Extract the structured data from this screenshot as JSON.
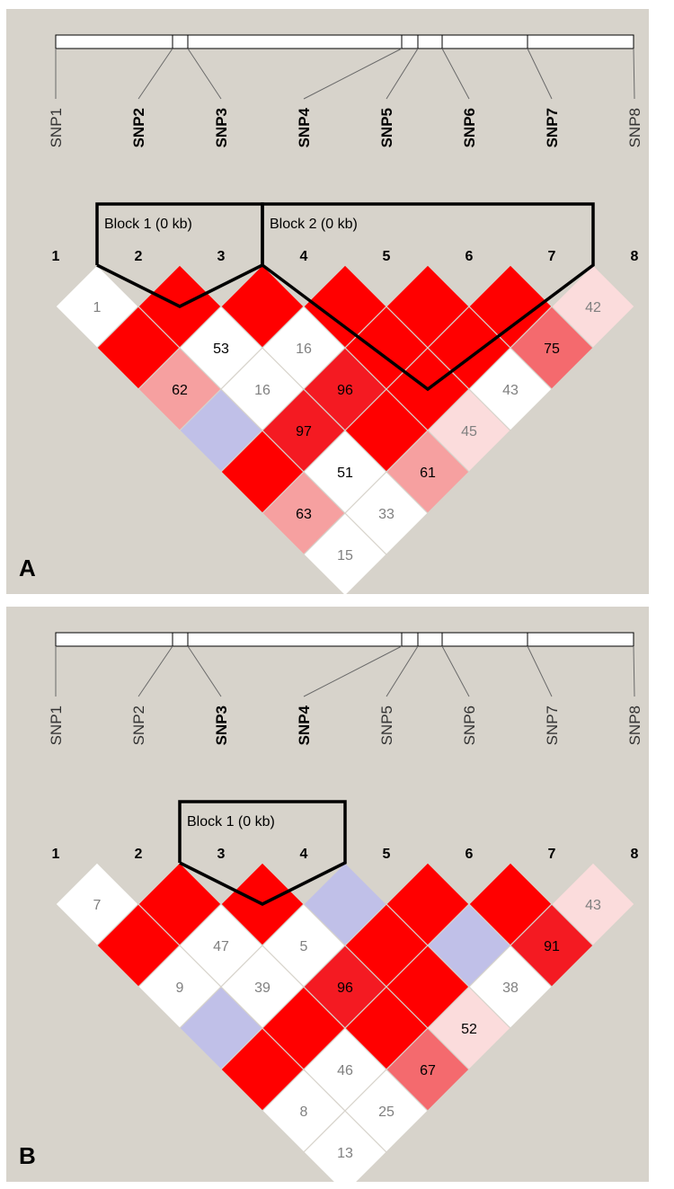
{
  "panels": [
    {
      "letter": "A",
      "snps": [
        "SNP1",
        "SNP2",
        "SNP3",
        "SNP4",
        "SNP5",
        "SNP6",
        "SNP7",
        "SNP8"
      ],
      "bold_snps": [
        false,
        true,
        true,
        true,
        true,
        true,
        true,
        false
      ],
      "snp_numbers": [
        "1",
        "2",
        "3",
        "4",
        "5",
        "6",
        "7",
        "8"
      ],
      "blocks": [
        {
          "label": "Block 1 (0 kb)",
          "start": 2,
          "end": 3
        },
        {
          "label": "Block 2 (0 kb)",
          "start": 4,
          "end": 7
        }
      ],
      "cells": [
        {
          "i": 1,
          "j": 2,
          "value": "1",
          "level": "white",
          "textcolor": "gray"
        },
        {
          "i": 1,
          "j": 3,
          "value": "",
          "level": "red",
          "textcolor": "black"
        },
        {
          "i": 1,
          "j": 4,
          "value": "62",
          "level": "pink",
          "textcolor": "black"
        },
        {
          "i": 1,
          "j": 5,
          "value": "",
          "level": "blue",
          "textcolor": "black"
        },
        {
          "i": 1,
          "j": 6,
          "value": "",
          "level": "red",
          "textcolor": "black"
        },
        {
          "i": 1,
          "j": 7,
          "value": "63",
          "level": "pink",
          "textcolor": "black"
        },
        {
          "i": 1,
          "j": 8,
          "value": "15",
          "level": "white",
          "textcolor": "gray"
        },
        {
          "i": 2,
          "j": 3,
          "value": "",
          "level": "red",
          "textcolor": "black"
        },
        {
          "i": 2,
          "j": 4,
          "value": "53",
          "level": "white",
          "textcolor": "black"
        },
        {
          "i": 2,
          "j": 5,
          "value": "16",
          "level": "white",
          "textcolor": "gray"
        },
        {
          "i": 2,
          "j": 6,
          "value": "97",
          "level": "red2",
          "textcolor": "black"
        },
        {
          "i": 2,
          "j": 7,
          "value": "51",
          "level": "white",
          "textcolor": "black"
        },
        {
          "i": 2,
          "j": 8,
          "value": "33",
          "level": "white",
          "textcolor": "gray"
        },
        {
          "i": 3,
          "j": 4,
          "value": "",
          "level": "red",
          "textcolor": "black"
        },
        {
          "i": 3,
          "j": 5,
          "value": "16",
          "level": "white",
          "textcolor": "gray"
        },
        {
          "i": 3,
          "j": 6,
          "value": "96",
          "level": "red2",
          "textcolor": "black"
        },
        {
          "i": 3,
          "j": 7,
          "value": "",
          "level": "red",
          "textcolor": "black"
        },
        {
          "i": 3,
          "j": 8,
          "value": "61",
          "level": "pink",
          "textcolor": "black"
        },
        {
          "i": 4,
          "j": 5,
          "value": "",
          "level": "red",
          "textcolor": "black"
        },
        {
          "i": 4,
          "j": 6,
          "value": "",
          "level": "red",
          "textcolor": "black"
        },
        {
          "i": 4,
          "j": 7,
          "value": "",
          "level": "red",
          "textcolor": "black"
        },
        {
          "i": 4,
          "j": 8,
          "value": "45",
          "level": "lightpink",
          "textcolor": "gray"
        },
        {
          "i": 5,
          "j": 6,
          "value": "",
          "level": "red",
          "textcolor": "black"
        },
        {
          "i": 5,
          "j": 7,
          "value": "",
          "level": "red",
          "textcolor": "black"
        },
        {
          "i": 5,
          "j": 8,
          "value": "43",
          "level": "white",
          "textcolor": "gray"
        },
        {
          "i": 6,
          "j": 7,
          "value": "",
          "level": "red",
          "textcolor": "black"
        },
        {
          "i": 6,
          "j": 8,
          "value": "75",
          "level": "salmon",
          "textcolor": "black"
        },
        {
          "i": 7,
          "j": 8,
          "value": "42",
          "level": "lightpink",
          "textcolor": "gray"
        }
      ]
    },
    {
      "letter": "B",
      "snps": [
        "SNP1",
        "SNP2",
        "SNP3",
        "SNP4",
        "SNP5",
        "SNP6",
        "SNP7",
        "SNP8"
      ],
      "bold_snps": [
        false,
        false,
        true,
        true,
        false,
        false,
        false,
        false
      ],
      "snp_numbers": [
        "1",
        "2",
        "3",
        "4",
        "5",
        "6",
        "7",
        "8"
      ],
      "blocks": [
        {
          "label": "Block 1 (0 kb)",
          "start": 3,
          "end": 4
        }
      ],
      "cells": [
        {
          "i": 1,
          "j": 2,
          "value": "7",
          "level": "white",
          "textcolor": "gray"
        },
        {
          "i": 1,
          "j": 3,
          "value": "",
          "level": "red",
          "textcolor": "black"
        },
        {
          "i": 1,
          "j": 4,
          "value": "9",
          "level": "white",
          "textcolor": "gray"
        },
        {
          "i": 1,
          "j": 5,
          "value": "",
          "level": "blue",
          "textcolor": "black"
        },
        {
          "i": 1,
          "j": 6,
          "value": "",
          "level": "red",
          "textcolor": "black"
        },
        {
          "i": 1,
          "j": 7,
          "value": "8",
          "level": "white",
          "textcolor": "gray"
        },
        {
          "i": 1,
          "j": 8,
          "value": "13",
          "level": "white",
          "textcolor": "gray"
        },
        {
          "i": 2,
          "j": 3,
          "value": "",
          "level": "red",
          "textcolor": "black"
        },
        {
          "i": 2,
          "j": 4,
          "value": "47",
          "level": "white",
          "textcolor": "gray"
        },
        {
          "i": 2,
          "j": 5,
          "value": "39",
          "level": "white",
          "textcolor": "gray"
        },
        {
          "i": 2,
          "j": 6,
          "value": "",
          "level": "red",
          "textcolor": "black"
        },
        {
          "i": 2,
          "j": 7,
          "value": "46",
          "level": "white",
          "textcolor": "gray"
        },
        {
          "i": 2,
          "j": 8,
          "value": "25",
          "level": "white",
          "textcolor": "gray"
        },
        {
          "i": 3,
          "j": 4,
          "value": "",
          "level": "red",
          "textcolor": "black"
        },
        {
          "i": 3,
          "j": 5,
          "value": "5",
          "level": "white",
          "textcolor": "gray"
        },
        {
          "i": 3,
          "j": 6,
          "value": "96",
          "level": "red2",
          "textcolor": "black"
        },
        {
          "i": 3,
          "j": 7,
          "value": "",
          "level": "red",
          "textcolor": "black"
        },
        {
          "i": 3,
          "j": 8,
          "value": "67",
          "level": "salmon",
          "textcolor": "black"
        },
        {
          "i": 4,
          "j": 5,
          "value": "",
          "level": "blue",
          "textcolor": "black"
        },
        {
          "i": 4,
          "j": 6,
          "value": "",
          "level": "red",
          "textcolor": "black"
        },
        {
          "i": 4,
          "j": 7,
          "value": "",
          "level": "red",
          "textcolor": "black"
        },
        {
          "i": 4,
          "j": 8,
          "value": "52",
          "level": "lightpink",
          "textcolor": "black"
        },
        {
          "i": 5,
          "j": 6,
          "value": "",
          "level": "red",
          "textcolor": "black"
        },
        {
          "i": 5,
          "j": 7,
          "value": "",
          "level": "blue",
          "textcolor": "black"
        },
        {
          "i": 5,
          "j": 8,
          "value": "38",
          "level": "white",
          "textcolor": "gray"
        },
        {
          "i": 6,
          "j": 7,
          "value": "",
          "level": "red",
          "textcolor": "black"
        },
        {
          "i": 6,
          "j": 8,
          "value": "91",
          "level": "red2",
          "textcolor": "black"
        },
        {
          "i": 7,
          "j": 8,
          "value": "43",
          "level": "lightpink",
          "textcolor": "gray"
        }
      ]
    }
  ],
  "colors": {
    "background": "#d7d3cb",
    "red": "#ff0000",
    "red2": "#f41a22",
    "salmon": "#f46a6e",
    "pink": "#f6a0a0",
    "lightpink": "#fbdcdc",
    "white": "#ffffff",
    "blue": "#c0c0e8",
    "text_black": "#000000",
    "text_gray": "#808080"
  }
}
